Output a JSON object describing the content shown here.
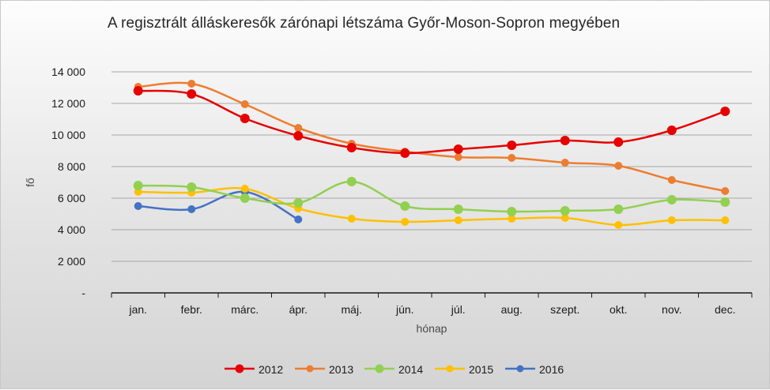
{
  "chart_data": {
    "type": "line",
    "title": "A regisztrált álláskeresők zárónapi létszáma Győr-Moson-Sopron megyében",
    "xlabel": "hónap",
    "ylabel": "fő",
    "categories": [
      "jan.",
      "febr.",
      "márc.",
      "ápr.",
      "máj.",
      "jún.",
      "júl.",
      "aug.",
      "szept.",
      "okt.",
      "nov.",
      "dec."
    ],
    "ylim": [
      0,
      14000
    ],
    "yticks": [
      0,
      2000,
      4000,
      6000,
      8000,
      10000,
      12000,
      14000
    ],
    "ytick_labels": [
      "-",
      "2 000",
      "4 000",
      "6 000",
      "8 000",
      "10 000",
      "12 000",
      "14 000"
    ],
    "grid": true,
    "legend_position": "bottom",
    "smooth": true,
    "series": [
      {
        "name": "2012",
        "color": "#e60000",
        "marker": "large",
        "values": [
          12800,
          12600,
          11050,
          9950,
          9200,
          8850,
          9100,
          9350,
          9650,
          9550,
          10300,
          11500
        ]
      },
      {
        "name": "2013",
        "color": "#ed7d31",
        "marker": "medium",
        "values": [
          13050,
          13250,
          11950,
          10450,
          9450,
          8950,
          8600,
          8550,
          8250,
          8050,
          7150,
          6450
        ]
      },
      {
        "name": "2014",
        "color": "#92d050",
        "marker": "large",
        "values": [
          6800,
          6700,
          6000,
          5700,
          7050,
          5500,
          5300,
          5150,
          5200,
          5300,
          5900,
          5750
        ]
      },
      {
        "name": "2015",
        "color": "#ffc000",
        "marker": "medium",
        "values": [
          6400,
          6350,
          6600,
          5350,
          4700,
          4500,
          4600,
          4700,
          4750,
          4300,
          4600,
          4600
        ]
      },
      {
        "name": "2016",
        "color": "#4472c4",
        "marker": "medium",
        "values": [
          5500,
          5300,
          6400,
          4650,
          null,
          null,
          null,
          null,
          null,
          null,
          null,
          null
        ]
      }
    ]
  }
}
